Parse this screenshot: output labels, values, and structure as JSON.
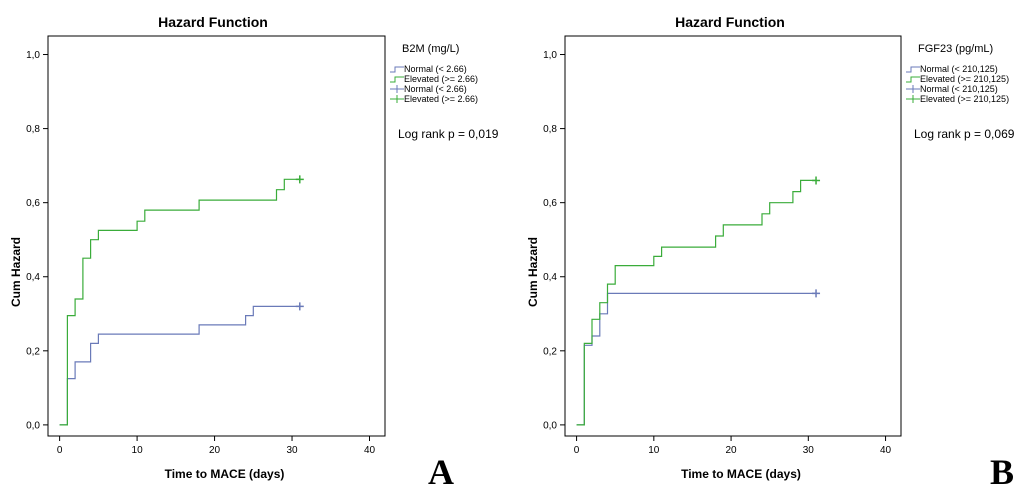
{
  "chart_data": [
    {
      "type": "line",
      "title": "Hazard Function",
      "xlabel": "Time to MACE (days)",
      "ylabel": "Cum Hazard",
      "xlim": [
        -1.5,
        42
      ],
      "ylim": [
        -0.03,
        1.05
      ],
      "xticks": [
        0,
        10,
        20,
        30,
        40
      ],
      "xtick_labels": [
        "0",
        "10",
        "20",
        "30",
        "40"
      ],
      "yticks": [
        0,
        0.2,
        0.4,
        0.6,
        0.8,
        1.0
      ],
      "ytick_labels": [
        "0,0",
        "0,2",
        "0,4",
        "0,6",
        "0,8",
        "1,0"
      ],
      "legend_title": "B2M (mg/L)",
      "legend_placement": "right",
      "annotation": "Log rank p = 0,019",
      "panel_label": "A",
      "series": [
        {
          "name": "Normal (< 2.66)",
          "censored_name": "Normal (< 2.66)",
          "color": "#6a7ab8",
          "steps": [
            [
              0,
              0
            ],
            [
              1,
              0.125
            ],
            [
              2,
              0.17
            ],
            [
              4,
              0.22
            ],
            [
              5,
              0.245
            ],
            [
              18,
              0.27
            ],
            [
              24,
              0.295
            ],
            [
              25,
              0.32
            ],
            [
              31,
              0.32
            ]
          ],
          "censored": [
            [
              31,
              0.32
            ]
          ]
        },
        {
          "name": "Elevated (>= 2.66)",
          "censored_name": "Elevated (>= 2.66)",
          "color": "#3aac3a",
          "steps": [
            [
              0,
              0
            ],
            [
              1,
              0.295
            ],
            [
              2,
              0.34
            ],
            [
              3,
              0.45
            ],
            [
              4,
              0.5
            ],
            [
              5,
              0.525
            ],
            [
              10,
              0.55
            ],
            [
              11,
              0.58
            ],
            [
              18,
              0.607
            ],
            [
              28,
              0.635
            ],
            [
              29,
              0.663
            ],
            [
              31,
              0.663
            ]
          ],
          "censored": [
            [
              31,
              0.663
            ]
          ]
        }
      ]
    },
    {
      "type": "line",
      "title": "Hazard Function",
      "xlabel": "Time to MACE (days)",
      "ylabel": "Cum Hazard",
      "xlim": [
        -1.5,
        42
      ],
      "ylim": [
        -0.03,
        1.05
      ],
      "xticks": [
        0,
        10,
        20,
        30,
        40
      ],
      "xtick_labels": [
        "0",
        "10",
        "20",
        "30",
        "40"
      ],
      "yticks": [
        0,
        0.2,
        0.4,
        0.6,
        0.8,
        1.0
      ],
      "ytick_labels": [
        "0,0",
        "0,2",
        "0,4",
        "0,6",
        "0,8",
        "1,0"
      ],
      "legend_title": "FGF23 (pg/mL)",
      "legend_placement": "right",
      "annotation": "Log rank p = 0,069",
      "panel_label": "B",
      "series": [
        {
          "name": "Normal (< 210,125)",
          "censored_name": "Normal (< 210,125)",
          "color": "#6a7ab8",
          "steps": [
            [
              0,
              0
            ],
            [
              1,
              0.215
            ],
            [
              2,
              0.24
            ],
            [
              3,
              0.3
            ],
            [
              4,
              0.355
            ],
            [
              31,
              0.355
            ]
          ],
          "censored": [
            [
              31,
              0.355
            ]
          ]
        },
        {
          "name": "Elevated (>= 210,125)",
          "censored_name": "Elevated (>= 210,125)",
          "color": "#3aac3a",
          "steps": [
            [
              0,
              0
            ],
            [
              1,
              0.22
            ],
            [
              2,
              0.285
            ],
            [
              3,
              0.33
            ],
            [
              4,
              0.38
            ],
            [
              5,
              0.43
            ],
            [
              10,
              0.455
            ],
            [
              11,
              0.48
            ],
            [
              18,
              0.51
            ],
            [
              19,
              0.54
            ],
            [
              24,
              0.57
            ],
            [
              25,
              0.6
            ],
            [
              28,
              0.63
            ],
            [
              29,
              0.66
            ],
            [
              31,
              0.66
            ]
          ],
          "censored": [
            [
              31,
              0.66
            ]
          ]
        }
      ]
    }
  ]
}
